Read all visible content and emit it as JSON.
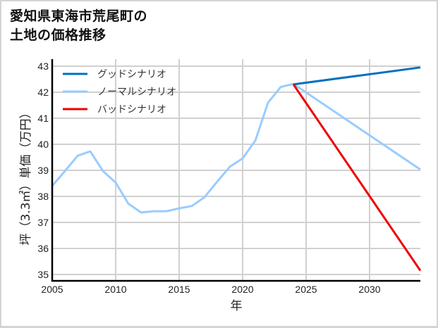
{
  "title": {
    "line1": "愛知県東海市荒尾町の",
    "line2": "土地の価格推移"
  },
  "colors": {
    "good": "#0070c0",
    "normal": "#99ccff",
    "bad": "#ee0000",
    "grid": "#d0d0d0",
    "axis": "#000000"
  },
  "chart_data": {
    "type": "line",
    "title": "愛知県東海市荒尾町の土地の価格推移",
    "xlabel": "年",
    "ylabel": "坪（3.3㎡）単価（万円）",
    "xlim": [
      2005,
      2034
    ],
    "ylim": [
      34.8,
      43.1
    ],
    "xticks": [
      2005,
      2010,
      2015,
      2020,
      2025,
      2030
    ],
    "yticks": [
      35,
      36,
      37,
      38,
      39,
      40,
      41,
      42,
      43
    ],
    "grid": true,
    "legend_position": "upper left",
    "series": [
      {
        "name": "グッドシナリオ",
        "color": "#0070c0",
        "x": [
          2024,
          2034
        ],
        "values": [
          42.3,
          42.95
        ]
      },
      {
        "name": "ノーマルシナリオ",
        "color": "#99ccff",
        "x": [
          2005,
          2006,
          2007,
          2008,
          2009,
          2010,
          2011,
          2012,
          2013,
          2014,
          2015,
          2016,
          2017,
          2018,
          2019,
          2020,
          2021,
          2022,
          2023,
          2024,
          2034
        ],
        "values": [
          38.4,
          38.97,
          39.56,
          39.73,
          38.97,
          38.53,
          37.72,
          37.38,
          37.43,
          37.43,
          37.54,
          37.63,
          37.97,
          38.57,
          39.14,
          39.46,
          40.14,
          41.6,
          42.2,
          42.32,
          39.03
        ]
      },
      {
        "name": "バッドシナリオ",
        "color": "#ee0000",
        "x": [
          2024,
          2034
        ],
        "values": [
          42.3,
          35.15
        ]
      }
    ]
  }
}
